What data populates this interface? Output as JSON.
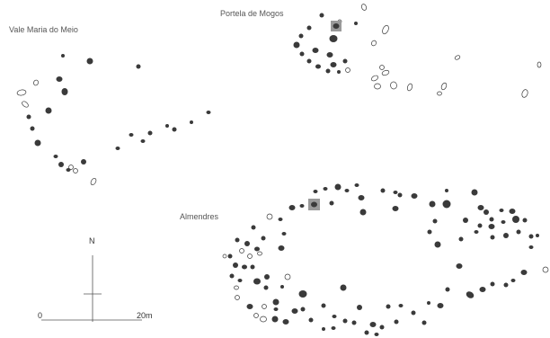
{
  "colors": {
    "stone": "#3a3a3a",
    "marker": "#9a9a9a",
    "label": "#555555"
  },
  "sites": [
    {
      "id": "vale-maria-do-meio",
      "label": "Vale Maria do Meio"
    },
    {
      "id": "portela-de-mogos",
      "label": "Portela de Mogos"
    },
    {
      "id": "almendres",
      "label": "Almendres"
    }
  ],
  "north_label": "N",
  "scale": {
    "start_label": "0",
    "end_label": "20m"
  }
}
